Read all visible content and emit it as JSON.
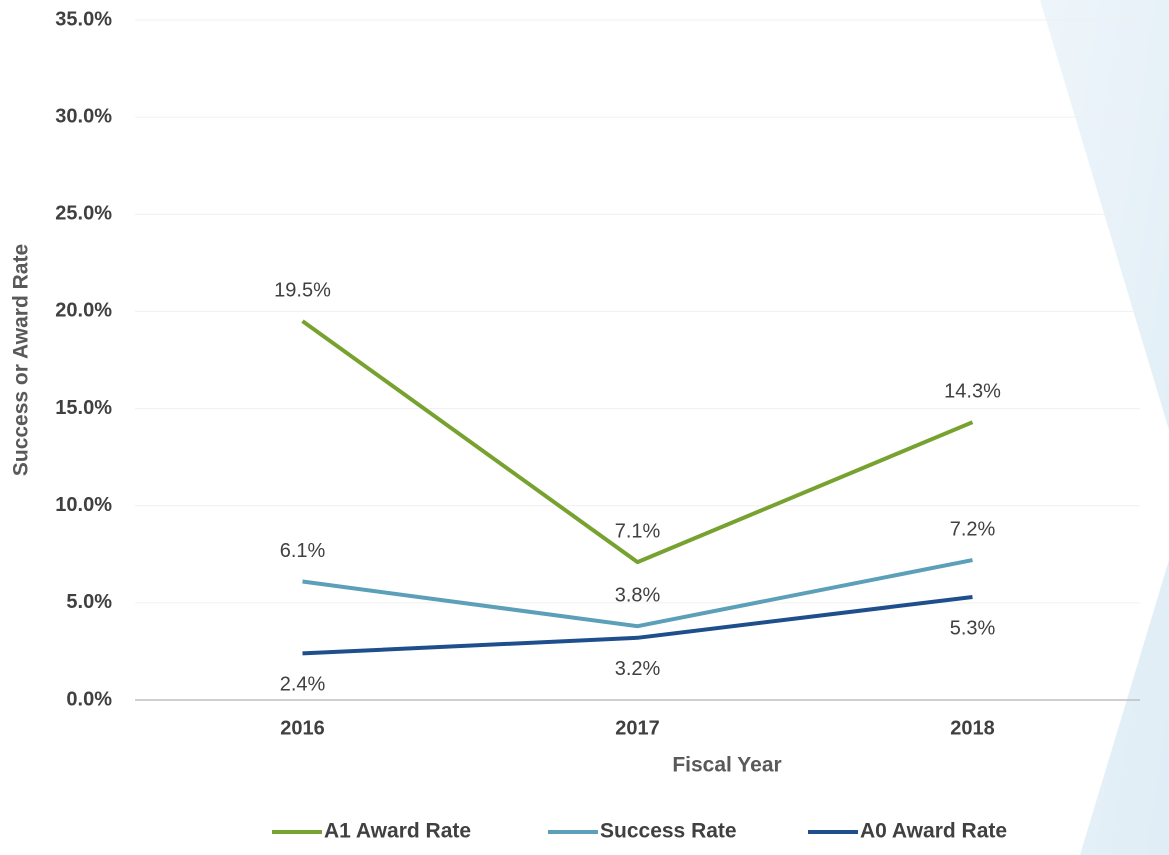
{
  "chart_data": {
    "type": "line",
    "categories": [
      "2016",
      "2017",
      "2018"
    ],
    "series": [
      {
        "name": "A1 Award Rate",
        "color": "#77a22f",
        "values": [
          19.5,
          7.1,
          14.3
        ],
        "value_labels": [
          "19.5%",
          "7.1%",
          "14.3%"
        ]
      },
      {
        "name": "Success Rate",
        "color": "#5b9fb9",
        "values": [
          6.1,
          3.8,
          7.2
        ],
        "value_labels": [
          "6.1%",
          "3.8%",
          "7.2%"
        ]
      },
      {
        "name": "A0 Award Rate",
        "color": "#1f4e8c",
        "values": [
          2.4,
          3.2,
          5.3
        ],
        "value_labels": [
          "2.4%",
          "3.2%",
          "5.3%"
        ]
      }
    ],
    "ylim": [
      0,
      35
    ],
    "yticks": [
      {
        "value": 0,
        "label": "0.0%"
      },
      {
        "value": 5,
        "label": "5.0%"
      },
      {
        "value": 10,
        "label": "10.0%"
      },
      {
        "value": 15,
        "label": "15.0%"
      },
      {
        "value": 20,
        "label": "20.0%"
      },
      {
        "value": 25,
        "label": "25.0%"
      },
      {
        "value": 30,
        "label": "30.0%"
      },
      {
        "value": 35,
        "label": "35.0%"
      }
    ],
    "x_label": "Fiscal Year",
    "y_label": "Success or Award Rate",
    "grid": true,
    "legend": "bottom"
  }
}
